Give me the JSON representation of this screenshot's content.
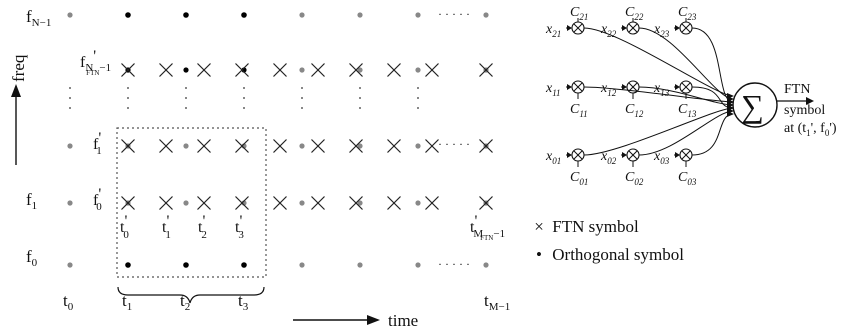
{
  "axes": {
    "freq_label": "freq",
    "time_label": "time"
  },
  "freq_labels": [
    "f",
    "f",
    "f",
    "f",
    "f"
  ],
  "freq_subs": [
    "0",
    "1",
    "N−1"
  ],
  "time_labels": [
    "t",
    "t",
    "t",
    "t",
    "t"
  ],
  "time_subs": [
    "0",
    "1",
    "2",
    "3",
    "M−1"
  ],
  "ftn_freq_subs": [
    "0",
    "1",
    "N"
  ],
  "ftn_freq_subsub": "FTN",
  "ftn_freq_suffix": "−1",
  "ftn_time_subs": [
    "0",
    "1",
    "2",
    "3",
    "M"
  ],
  "ftn_time_subsub": "FTN",
  "ftn_time_suffix": "−1",
  "prime": "'",
  "dots": "· · · · ·",
  "combiner": {
    "sum_symbol": "∑",
    "output_lines": [
      "FTN",
      "symbol",
      "at (t",
      "1",
      "', f",
      "0",
      "')"
    ],
    "inputs_top": [
      "x",
      "x",
      "x"
    ],
    "inputs_top_subs": [
      "21",
      "22",
      "23"
    ],
    "coeff_top_subs": [
      "21",
      "22",
      "23"
    ],
    "inputs_mid_subs": [
      "11",
      "12",
      "13"
    ],
    "coeff_mid_subs": [
      "11",
      "12",
      "13"
    ],
    "inputs_bot_subs": [
      "01",
      "02",
      "03"
    ],
    "coeff_bot_subs": [
      "01",
      "02",
      "03"
    ],
    "x_letter": "x",
    "c_letter": "C"
  },
  "legend": {
    "ftn_marker": "×",
    "ftn_label": "FTN symbol",
    "orth_marker": "•",
    "orth_label": "Orthogonal symbol"
  },
  "colors": {
    "orthogonal_dot": "#888888",
    "highlight_dot": "#000000",
    "ftn_cross": "#222222",
    "dashed_box": "#555555"
  }
}
